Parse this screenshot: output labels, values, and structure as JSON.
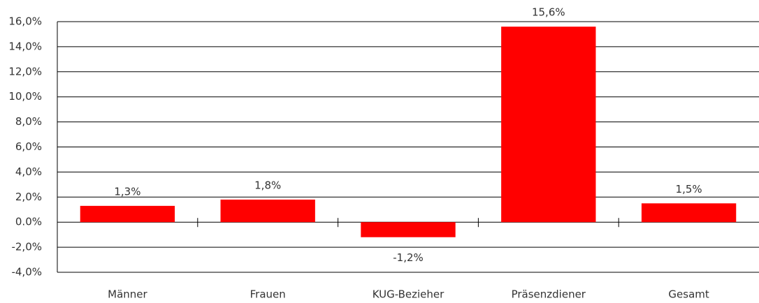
{
  "chart_data": {
    "type": "bar",
    "categories": [
      "Männer",
      "Frauen",
      "KUG-Bezieher",
      "Präsenzdiener",
      "Gesamt"
    ],
    "values": [
      1.3,
      1.8,
      -1.2,
      15.6,
      1.5
    ],
    "value_labels": [
      "1,3%",
      "1,8%",
      "-1,2%",
      "15,6%",
      "1,5%"
    ],
    "color": "#ff0000",
    "ylim": [
      -4,
      16
    ],
    "yticks": [
      {
        "value": -4,
        "label": "-4,0%"
      },
      {
        "value": -2,
        "label": "-2,0%"
      },
      {
        "value": 0,
        "label": "0.0%"
      },
      {
        "value": 2,
        "label": "2,0%"
      },
      {
        "value": 4,
        "label": "4,0%"
      },
      {
        "value": 6,
        "label": "6,0%"
      },
      {
        "value": 8,
        "label": "8,0%"
      },
      {
        "value": 10,
        "label": "10,0%"
      },
      {
        "value": 12,
        "label": "12,0%"
      },
      {
        "value": 14,
        "label": "14,0%"
      },
      {
        "value": 16,
        "label": "16,0%"
      }
    ],
    "grid": true
  }
}
